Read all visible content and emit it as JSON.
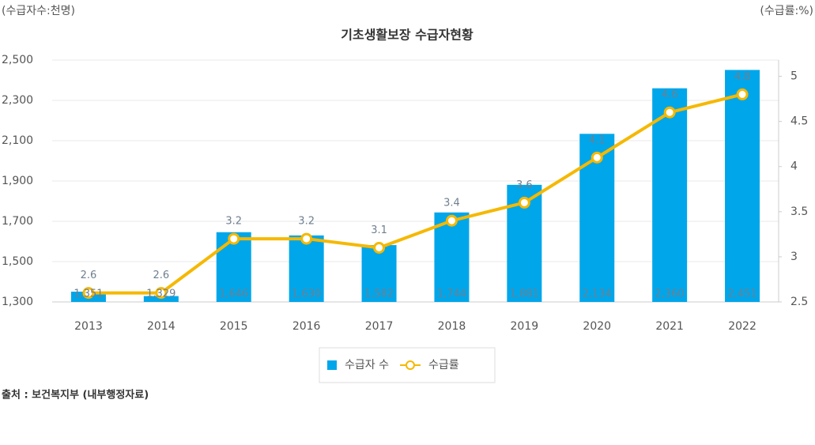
{
  "chart_data": {
    "type": "bar",
    "title": "기초생활보장 수급자현황",
    "y_axis_label": "(수급자수:천명)",
    "y2_axis_label": "(수급률:%)",
    "source": "출처 : 보건복지부 (내부행정자료)",
    "categories": [
      "2013",
      "2014",
      "2015",
      "2016",
      "2017",
      "2018",
      "2019",
      "2020",
      "2021",
      "2022"
    ],
    "series": [
      {
        "name": "수급자 수",
        "type": "bar",
        "color": "#00a6ea",
        "values": [
          1351,
          1329,
          1646,
          1630,
          1582,
          1744,
          1881,
          2134,
          2360,
          2451
        ],
        "value_labels": [
          "1,351",
          "1,329",
          "1,646",
          "1,630",
          "1,582",
          "1,744",
          "1,881",
          "2,134",
          "2,360",
          "2,451"
        ]
      },
      {
        "name": "수급률",
        "type": "line",
        "axis": "y2",
        "color": "#f5b800",
        "values": [
          2.6,
          2.6,
          3.2,
          3.2,
          3.1,
          3.4,
          3.6,
          4.1,
          4.6,
          4.8
        ]
      }
    ],
    "ylim": [
      1300,
      2500
    ],
    "yticks": [
      {
        "value": 1300,
        "label": "1,300"
      },
      {
        "value": 1500,
        "label": "1,500"
      },
      {
        "value": 1700,
        "label": "1,700"
      },
      {
        "value": 1900,
        "label": "1,900"
      },
      {
        "value": 2100,
        "label": "2,100"
      },
      {
        "value": 2300,
        "label": "2,300"
      },
      {
        "value": 2500,
        "label": "2,500"
      }
    ],
    "y2lim": [
      2.5,
      5.18
    ],
    "y2ticks": [
      2.5,
      3,
      3.5,
      4,
      4.5,
      5
    ],
    "grid": true,
    "legend": "bottom"
  }
}
